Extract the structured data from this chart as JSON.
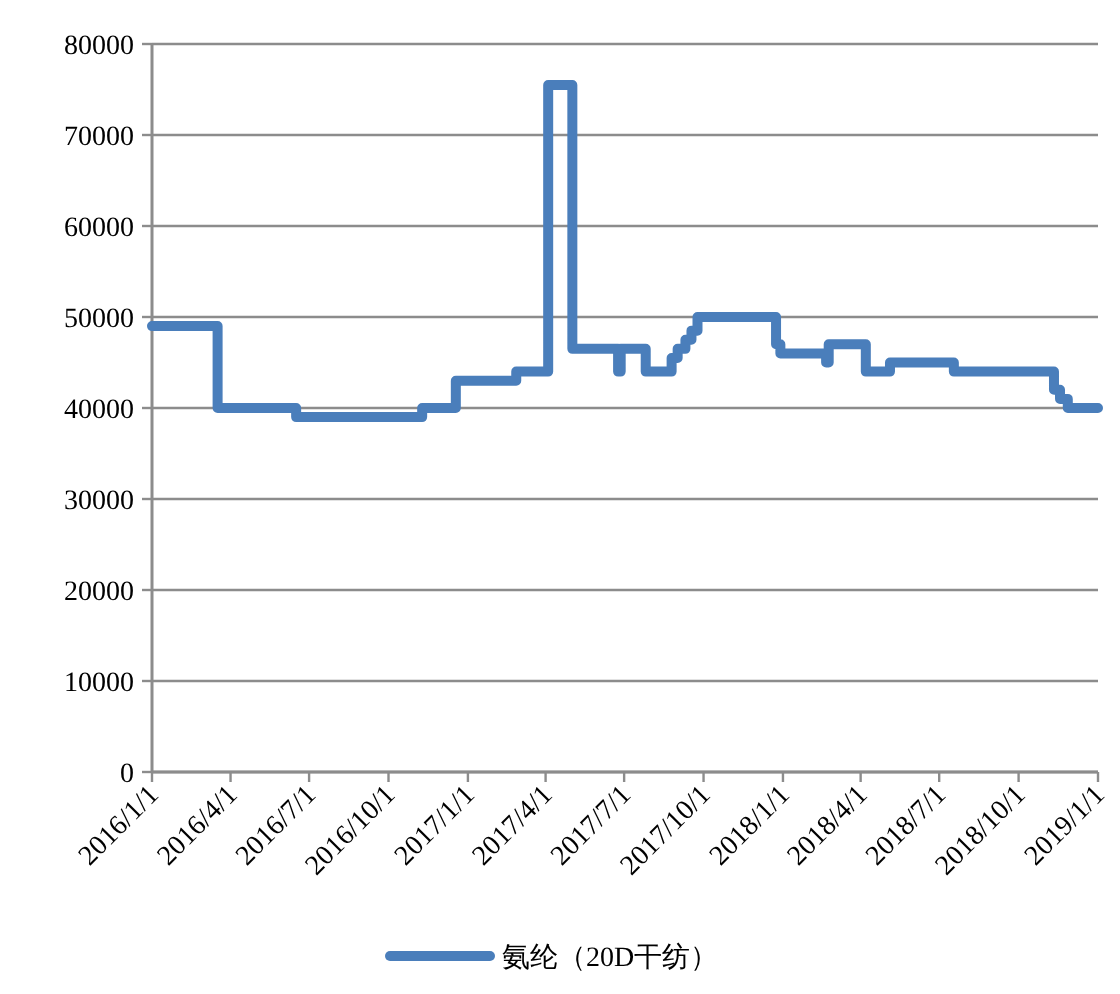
{
  "chart_data": {
    "type": "step",
    "x": [
      "2016-01-01",
      "2016-03-17",
      "2016-06-16",
      "2016-11-09",
      "2016-12-18",
      "2017-02-26",
      "2017-04-04",
      "2017-05-02",
      "2017-06-24",
      "2017-06-27",
      "2017-07-26",
      "2017-08-25",
      "2017-09-01",
      "2017-09-10",
      "2017-09-17",
      "2017-09-24",
      "2017-12-24",
      "2017-12-29",
      "2018-02-20",
      "2018-02-23",
      "2018-04-07",
      "2018-05-05",
      "2018-07-18",
      "2018-11-11",
      "2018-11-18",
      "2018-11-27",
      "2019-01-01"
    ],
    "series": [
      {
        "name": "氨纶（20D干纺）",
        "color": "#4a7ebb",
        "values": [
          49000,
          40000,
          39000,
          40000,
          43000,
          44000,
          75500,
          46500,
          44000,
          46500,
          44000,
          45500,
          46500,
          47500,
          48500,
          50000,
          47000,
          46000,
          45000,
          47000,
          44000,
          45000,
          44000,
          42000,
          41000,
          40000,
          40000
        ]
      }
    ],
    "xlim": [
      "2016-01-01",
      "2019-01-01"
    ],
    "xticks": [
      {
        "value": "2016-01-01",
        "label": "2016/1/1"
      },
      {
        "value": "2016-04-01",
        "label": "2016/4/1"
      },
      {
        "value": "2016-07-01",
        "label": "2016/7/1"
      },
      {
        "value": "2016-10-01",
        "label": "2016/10/1"
      },
      {
        "value": "2017-01-01",
        "label": "2017/1/1"
      },
      {
        "value": "2017-04-01",
        "label": "2017/4/1"
      },
      {
        "value": "2017-07-01",
        "label": "2017/7/1"
      },
      {
        "value": "2017-10-01",
        "label": "2017/10/1"
      },
      {
        "value": "2018-01-01",
        "label": "2018/1/1"
      },
      {
        "value": "2018-04-01",
        "label": "2018/4/1"
      },
      {
        "value": "2018-07-01",
        "label": "2018/7/1"
      },
      {
        "value": "2018-10-01",
        "label": "2018/10/1"
      },
      {
        "value": "2019-01-01",
        "label": "2019/1/1"
      }
    ],
    "ylim": [
      0,
      80000
    ],
    "yticks": [
      0,
      10000,
      20000,
      30000,
      40000,
      50000,
      60000,
      70000,
      80000
    ],
    "grid": "y",
    "legend": "bottom"
  }
}
